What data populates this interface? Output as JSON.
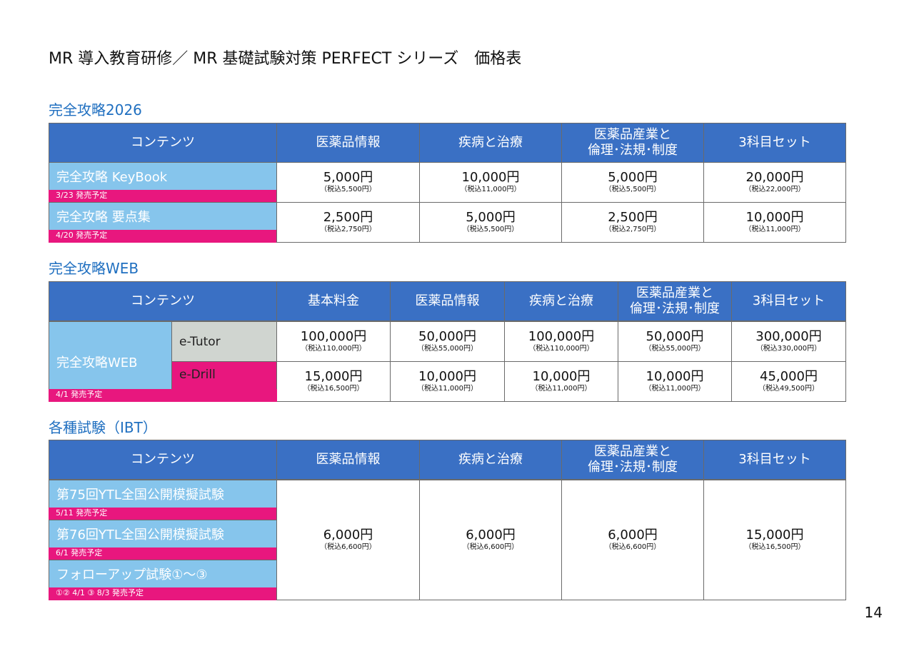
{
  "title": "MR 導入教育研修／ MR 基礎試験対策 PERFECT シリーズ　価格表",
  "page_number": "14",
  "sections": [
    {
      "heading": "完全攻略2026",
      "header": [
        "コンテンツ",
        "医薬品情報",
        "疾病と治療",
        "医薬品産業と\n倫理･法規･制度",
        "3科目セット"
      ],
      "rows": [
        {
          "name": "完全攻略 KeyBook",
          "note": "3/23 発売予定",
          "prices": [
            {
              "price": "5,000円",
              "tax": "（税込5,500円）"
            },
            {
              "price": "10,000円",
              "tax": "（税込11,000円）"
            },
            {
              "price": "5,000円",
              "tax": "（税込5,500円）"
            },
            {
              "price": "20,000円",
              "tax": "（税込22,000円）"
            }
          ]
        },
        {
          "name": "完全攻略 要点集",
          "note": "4/20 発売予定",
          "prices": [
            {
              "price": "2,500円",
              "tax": "（税込2,750円）"
            },
            {
              "price": "5,000円",
              "tax": "（税込5,500円）"
            },
            {
              "price": "2,500円",
              "tax": "（税込2,750円）"
            },
            {
              "price": "10,000円",
              "tax": "（税込11,000円）"
            }
          ]
        }
      ]
    },
    {
      "heading": "完全攻略WEB",
      "header": [
        "コンテンツ",
        "基本料金",
        "医薬品情報",
        "疾病と治療",
        "医薬品産業と\n倫理･法規･制度",
        "3科目セット"
      ],
      "product": "完全攻略WEB",
      "note": "4/1 発売予定",
      "rows": [
        {
          "name": "e-Tutor",
          "prices": [
            {
              "price": "100,000円",
              "tax": "（税込110,000円）"
            },
            {
              "price": "50,000円",
              "tax": "（税込55,000円）"
            },
            {
              "price": "100,000円",
              "tax": "（税込110,000円）"
            },
            {
              "price": "50,000円",
              "tax": "（税込55,000円）"
            },
            {
              "price": "300,000円",
              "tax": "（税込330,000円）"
            }
          ]
        },
        {
          "name": "e-Drill",
          "prices": [
            {
              "price": "15,000円",
              "tax": "（税込16,500円）"
            },
            {
              "price": "10,000円",
              "tax": "（税込11,000円）"
            },
            {
              "price": "10,000円",
              "tax": "（税込11,000円）"
            },
            {
              "price": "10,000円",
              "tax": "（税込11,000円）"
            },
            {
              "price": "45,000円",
              "tax": "（税込49,500円）"
            }
          ]
        }
      ]
    },
    {
      "heading": "各種試験（IBT）",
      "header": [
        "コンテンツ",
        "医薬品情報",
        "疾病と治療",
        "医薬品産業と\n倫理･法規･制度",
        "3科目セット"
      ],
      "items": [
        {
          "name": "第75回YTL全国公開模擬試験",
          "note": "5/11 発売予定"
        },
        {
          "name": "第76回YTL全国公開模擬試験",
          "note": "6/1 発売予定"
        },
        {
          "name": "フォローアップ試験①～③",
          "note": "①② 4/1 ③ 8/3 発売予定"
        }
      ],
      "prices": [
        {
          "price": "6,000円",
          "tax": "（税込6,600円）"
        },
        {
          "price": "6,000円",
          "tax": "（税込6,600円）"
        },
        {
          "price": "6,000円",
          "tax": "（税込6,600円）"
        },
        {
          "price": "15,000円",
          "tax": "（税込16,500円）"
        }
      ]
    }
  ]
}
